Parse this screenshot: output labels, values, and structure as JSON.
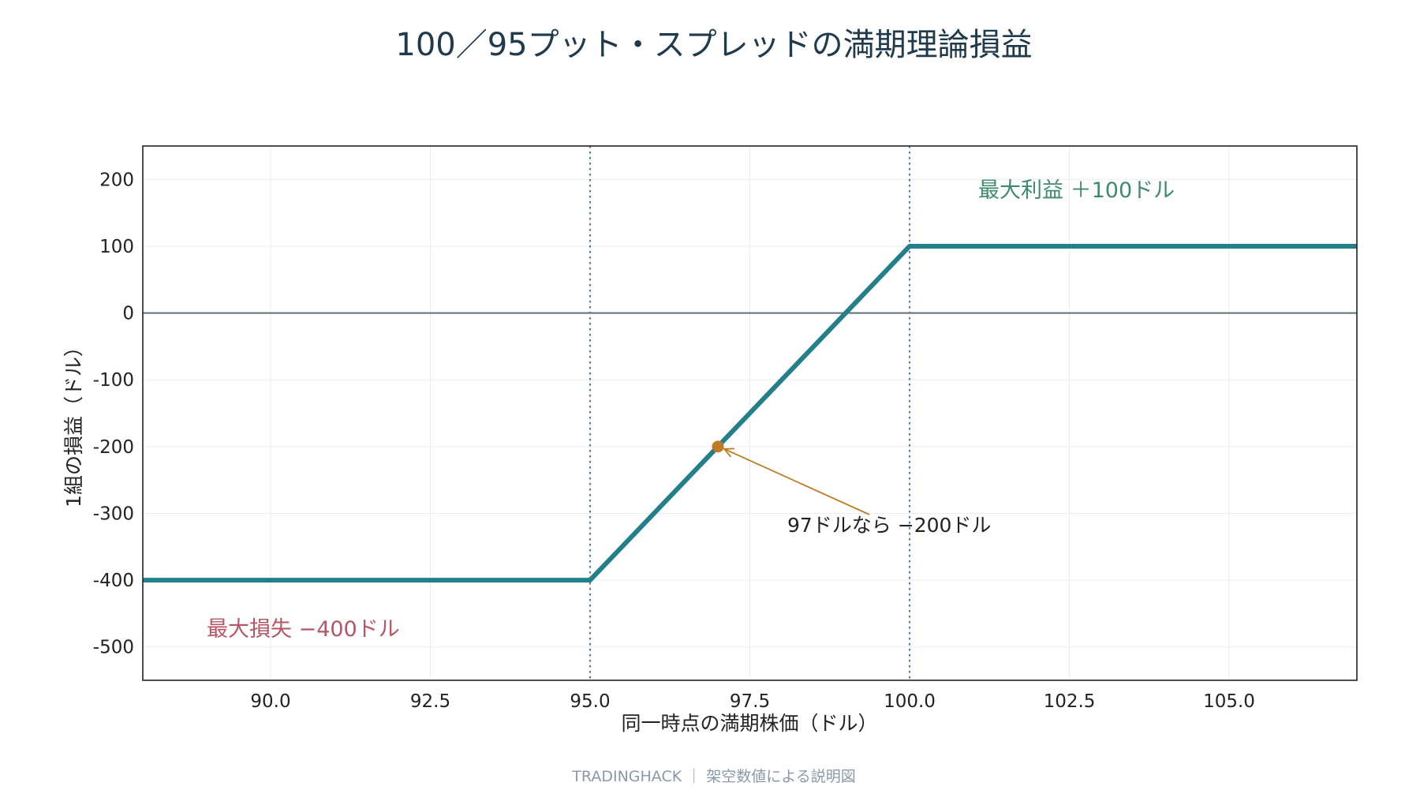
{
  "colors": {
    "title": "#1f3a4d",
    "line": "#237f8a",
    "max_profit": "#3d8a6c",
    "max_loss": "#b65565",
    "highlight": "#c07a22",
    "zero_line": "#5f6f7a",
    "strike_lines": "#5c7a94",
    "footer": "#8a98a8"
  },
  "chart_data": {
    "type": "line",
    "title": "100／95プット・スプレッドの満期理論損益",
    "xlabel": "同一時点の満期株価（ドル）",
    "ylabel": "1組の損益（ドル）",
    "xlim": [
      88,
      107
    ],
    "ylim": [
      -550,
      250
    ],
    "x_ticks": [
      90.0,
      92.5,
      95.0,
      97.5,
      100.0,
      102.5,
      105.0
    ],
    "x_tick_labels": [
      "90.0",
      "92.5",
      "95.0",
      "97.5",
      "100.0",
      "102.5",
      "105.0"
    ],
    "y_ticks": [
      200,
      100,
      0,
      -100,
      -200,
      -300,
      -400,
      -500
    ],
    "y_tick_labels": [
      "200",
      "100",
      "0",
      "-100",
      "-200",
      "-300",
      "-400",
      "-500"
    ],
    "grid": true,
    "series": [
      {
        "x": [
          88,
          95,
          100,
          107
        ],
        "y": [
          -400,
          -400,
          100,
          100
        ]
      }
    ],
    "vertical_lines": [
      95,
      100
    ],
    "zero_line": 0,
    "highlight_point": {
      "x": 97,
      "y": -200
    },
    "annotations": {
      "point_label": "97ドルなら −200ドル",
      "max_profit": "最大利益 ＋100ドル",
      "max_loss": "最大損失 −400ドル"
    }
  },
  "footer": "TRADINGHACK ｜ 架空数値による説明図"
}
